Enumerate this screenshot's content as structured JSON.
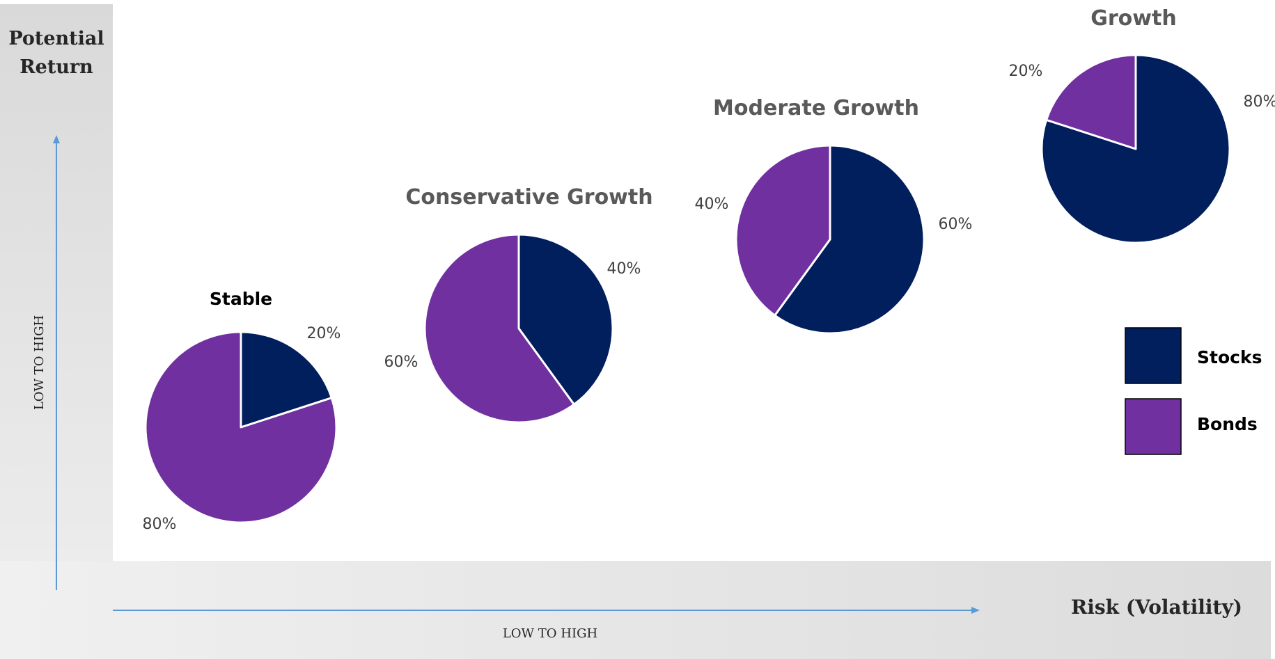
{
  "axes": {
    "y_title_line1": "Potential",
    "y_title_line2": "Return",
    "y_range_label": "LOW TO HIGH",
    "x_title": "Risk (Volatility)",
    "x_range_label": "LOW TO HIGH"
  },
  "colors": {
    "stocks": "#001F5C",
    "bonds": "#7030A0",
    "panel": "#E3E3E3",
    "arrow": "#5B9BD5",
    "title_gray": "#595959",
    "label_gray": "#404040"
  },
  "chart_data": {
    "type": "pie",
    "legend": {
      "position": "right",
      "entries": [
        "Stocks",
        "Bonds"
      ]
    },
    "pies": [
      {
        "title": "Stable",
        "slices": [
          {
            "name": "Stocks",
            "value": 20,
            "label": "20%"
          },
          {
            "name": "Bonds",
            "value": 80,
            "label": "80%"
          }
        ]
      },
      {
        "title": "Conservative Growth",
        "slices": [
          {
            "name": "Stocks",
            "value": 40,
            "label": "40%"
          },
          {
            "name": "Bonds",
            "value": 60,
            "label": "60%"
          }
        ]
      },
      {
        "title": "Moderate Growth",
        "slices": [
          {
            "name": "Stocks",
            "value": 60,
            "label": "60%"
          },
          {
            "name": "Bonds",
            "value": 40,
            "label": "40%"
          }
        ]
      },
      {
        "title": "Growth",
        "slices": [
          {
            "name": "Stocks",
            "value": 80,
            "label": "80%"
          },
          {
            "name": "Bonds",
            "value": 20,
            "label": "20%"
          }
        ]
      }
    ]
  }
}
